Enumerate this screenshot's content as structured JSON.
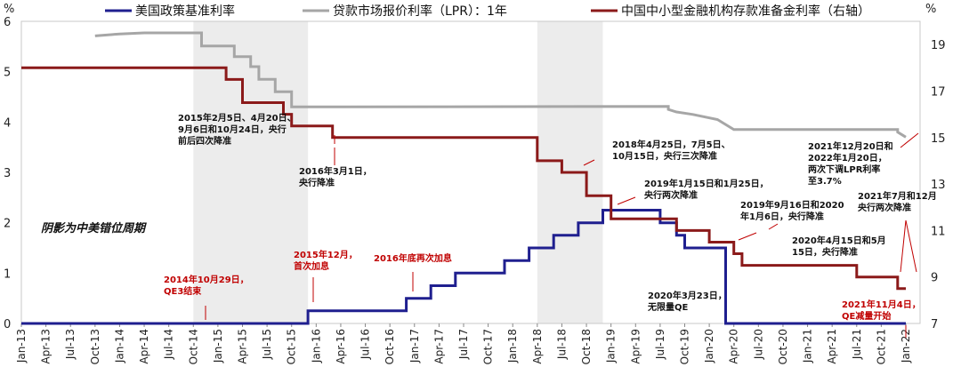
{
  "chart_data": {
    "type": "line",
    "left_axis_unit": "%",
    "right_axis_unit": "%",
    "left_ylim": [
      0,
      6
    ],
    "left_ticks": [
      "0",
      "1",
      "2",
      "3",
      "4",
      "5",
      "6"
    ],
    "right_ylim": [
      7,
      20
    ],
    "right_ticks": [
      "7",
      "9",
      "11",
      "13",
      "15",
      "17",
      "19"
    ],
    "x_labels": [
      "Jan-13",
      "Apr-13",
      "Jul-13",
      "Oct-13",
      "Jan-14",
      "Apr-14",
      "Jul-14",
      "Oct-14",
      "Jan-15",
      "Apr-15",
      "Jul-15",
      "Oct-15",
      "Jan-16",
      "Apr-16",
      "Jul-16",
      "Oct-16",
      "Jan-17",
      "Apr-17",
      "Jul-17",
      "Oct-17",
      "Jan-18",
      "Apr-18",
      "Jul-18",
      "Oct-18",
      "Jan-19",
      "Apr-19",
      "Jul-19",
      "Oct-19",
      "Jan-20",
      "Apr-20",
      "Jul-20",
      "Oct-20",
      "Jan-21",
      "Apr-21",
      "Jul-21",
      "Oct-21",
      "Jan-22"
    ],
    "shaded_periods": [
      [
        "2014-10",
        "2015-12"
      ],
      [
        "2018-04",
        "2018-12"
      ]
    ],
    "series": [
      {
        "name": "美国政策基准利率",
        "axis": "left",
        "color": "#1f1f8f",
        "points": [
          [
            "2013-01",
            0
          ],
          [
            "2015-12",
            0
          ],
          [
            "2015-12",
            0.25
          ],
          [
            "2016-12",
            0.25
          ],
          [
            "2016-12",
            0.5
          ],
          [
            "2017-03",
            0.5
          ],
          [
            "2017-03",
            0.75
          ],
          [
            "2017-06",
            0.75
          ],
          [
            "2017-06",
            1.0
          ],
          [
            "2017-12",
            1.0
          ],
          [
            "2017-12",
            1.25
          ],
          [
            "2018-03",
            1.25
          ],
          [
            "2018-03",
            1.5
          ],
          [
            "2018-06",
            1.5
          ],
          [
            "2018-06",
            1.75
          ],
          [
            "2018-09",
            1.75
          ],
          [
            "2018-09",
            2.0
          ],
          [
            "2018-12",
            2.0
          ],
          [
            "2018-12",
            2.25
          ],
          [
            "2019-07",
            2.25
          ],
          [
            "2019-07",
            2.0
          ],
          [
            "2019-09",
            2.0
          ],
          [
            "2019-09",
            1.75
          ],
          [
            "2019-10",
            1.75
          ],
          [
            "2019-10",
            1.5
          ],
          [
            "2020-03",
            1.5
          ],
          [
            "2020-03",
            1.0
          ],
          [
            "2020-03",
            0
          ],
          [
            "2022-01",
            0
          ]
        ]
      },
      {
        "name": "贷款市场报价利率（LPR）：1年",
        "axis": "left",
        "color": "#a6a6a6",
        "points": [
          [
            "2013-10",
            5.71
          ],
          [
            "2014-01",
            5.75
          ],
          [
            "2014-04",
            5.77
          ],
          [
            "2014-11",
            5.77
          ],
          [
            "2014-11",
            5.51
          ],
          [
            "2015-03",
            5.51
          ],
          [
            "2015-03",
            5.3
          ],
          [
            "2015-05",
            5.3
          ],
          [
            "2015-05",
            5.1
          ],
          [
            "2015-06",
            5.1
          ],
          [
            "2015-06",
            4.85
          ],
          [
            "2015-08",
            4.85
          ],
          [
            "2015-08",
            4.6
          ],
          [
            "2015-10",
            4.6
          ],
          [
            "2015-10",
            4.35
          ],
          [
            "2015-10",
            4.3
          ],
          [
            "2019-08",
            4.31
          ],
          [
            "2019-08",
            4.25
          ],
          [
            "2019-09",
            4.2
          ],
          [
            "2019-11",
            4.15
          ],
          [
            "2020-02",
            4.05
          ],
          [
            "2020-04",
            3.85
          ],
          [
            "2021-12",
            3.85
          ],
          [
            "2021-12",
            3.8
          ],
          [
            "2022-01",
            3.7
          ]
        ]
      },
      {
        "name": "中国中小型金融机构存款准备金利率（右轴）",
        "axis": "right",
        "color": "#8b1a1a",
        "points": [
          [
            "2013-01",
            18.0
          ],
          [
            "2015-02",
            18.0
          ],
          [
            "2015-02",
            17.5
          ],
          [
            "2015-04",
            17.5
          ],
          [
            "2015-04",
            16.5
          ],
          [
            "2015-09",
            16.5
          ],
          [
            "2015-09",
            16.0
          ],
          [
            "2015-10",
            16.0
          ],
          [
            "2015-10",
            15.5
          ],
          [
            "2016-03",
            15.5
          ],
          [
            "2016-03",
            15.0
          ],
          [
            "2018-04",
            15.0
          ],
          [
            "2018-04",
            14.0
          ],
          [
            "2018-07",
            14.0
          ],
          [
            "2018-07",
            13.5
          ],
          [
            "2018-10",
            13.5
          ],
          [
            "2018-10",
            12.5
          ],
          [
            "2019-01",
            12.5
          ],
          [
            "2019-01",
            12.0
          ],
          [
            "2019-01",
            11.5
          ],
          [
            "2019-09",
            11.5
          ],
          [
            "2019-09",
            11.0
          ],
          [
            "2020-01",
            11.0
          ],
          [
            "2020-01",
            10.5
          ],
          [
            "2020-04",
            10.5
          ],
          [
            "2020-04",
            10.0
          ],
          [
            "2020-05",
            10.0
          ],
          [
            "2020-05",
            9.5
          ],
          [
            "2021-07",
            9.5
          ],
          [
            "2021-07",
            9.0
          ],
          [
            "2021-12",
            9.0
          ],
          [
            "2021-12",
            8.5
          ],
          [
            "2022-01",
            8.5
          ]
        ]
      }
    ],
    "annotations": {
      "a1": [
        "2015年2月5日、4月20日、",
        "9月6日和10月24日，央行",
        "前后四次降准"
      ],
      "a2": [
        "2016年3月1日，",
        "央行降准"
      ],
      "a3": [
        "2018年4月25日，7月5日、",
        "10月15日，央行三次降准"
      ],
      "a4": [
        "2019年1月15日和1月25日，",
        "央行两次降准"
      ],
      "a5": [
        "2019年9月16日和2020",
        "年1月6日，央行降准"
      ],
      "a6": [
        "2020年4月15日和5月",
        "15日，央行降准"
      ],
      "a7": [
        "2021年12月20日和",
        "2022年1月20日，",
        "两次下调LPR利率",
        "至3.7%"
      ],
      "a8": [
        "2021年7月和12月",
        "央行两次降准"
      ],
      "a9": [
        "2020年3月23日，",
        "无限量QE"
      ],
      "r1": [
        "2014年10月29日，",
        "QE3结束"
      ],
      "r2": [
        "2015年12月，",
        "首次加息"
      ],
      "r3": [
        "2016年底再次加息"
      ],
      "r4": [
        "2021年11月4日，",
        "QE减量开始"
      ],
      "shade_note": "阴影为中美错位周期"
    }
  }
}
